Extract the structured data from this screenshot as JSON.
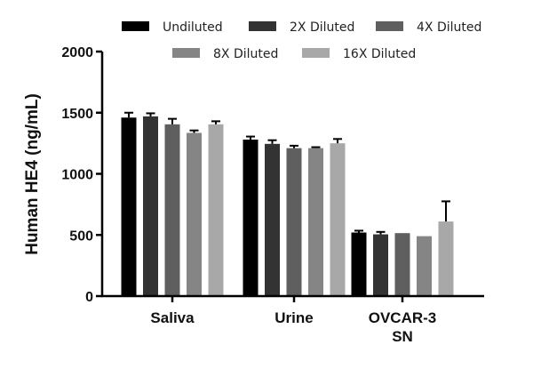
{
  "chart_data": {
    "type": "bar",
    "categories": [
      "Saliva",
      "Urine",
      "OVCAR-3\nSN"
    ],
    "ylabel": "Human HE4 (ng/mL)",
    "xlabel": "",
    "ylim": [
      0,
      2000
    ],
    "yticks": [
      0,
      500,
      1000,
      1500,
      2000
    ],
    "grid": false,
    "legend_position": "top",
    "series": [
      {
        "name": "Undiluted",
        "color": "#000000",
        "values": [
          1460,
          1280,
          520
        ],
        "errors": [
          40,
          25,
          15
        ]
      },
      {
        "name": "2X Diluted",
        "color": "#333333",
        "values": [
          1470,
          1245,
          505
        ],
        "errors": [
          25,
          30,
          20
        ]
      },
      {
        "name": "4X Diluted",
        "color": "#5f5f5f",
        "values": [
          1405,
          1210,
          515
        ],
        "errors": [
          45,
          20,
          0
        ]
      },
      {
        "name": "8X Diluted",
        "color": "#858585",
        "values": [
          1335,
          1210,
          490
        ],
        "errors": [
          20,
          8,
          0
        ]
      },
      {
        "name": "16X Diluted",
        "color": "#a8a8a8",
        "values": [
          1405,
          1250,
          610
        ],
        "errors": [
          25,
          35,
          165
        ]
      }
    ]
  }
}
